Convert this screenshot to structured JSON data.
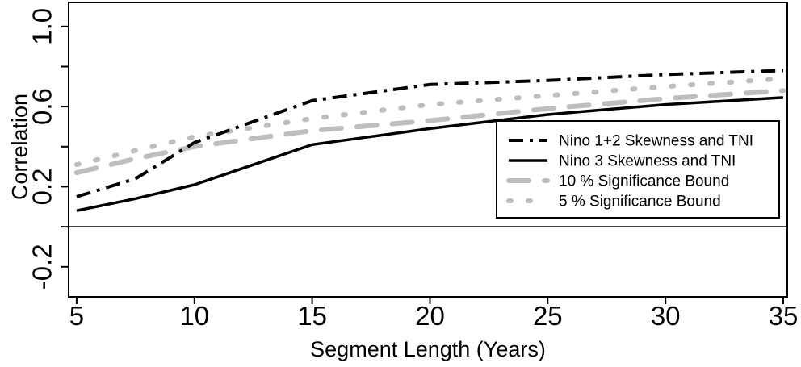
{
  "chart_data": {
    "type": "line",
    "title": "",
    "xlabel": "Segment Length (Years)",
    "ylabel": "Correlation",
    "x": [
      5,
      7.5,
      10,
      15,
      20,
      25,
      30,
      35
    ],
    "series": [
      {
        "id": "nino12",
        "name": "Nino 1+2 Skewness and TNI",
        "color": "#000000",
        "style": "dashdot",
        "width": 4,
        "values": [
          0.15,
          0.24,
          0.42,
          0.63,
          0.71,
          0.73,
          0.76,
          0.78
        ]
      },
      {
        "id": "nino3",
        "name": "Nino 3 Skewness and TNI",
        "color": "#000000",
        "style": "solid",
        "width": 3.5,
        "values": [
          0.08,
          0.14,
          0.21,
          0.41,
          0.49,
          0.56,
          0.61,
          0.645
        ]
      },
      {
        "id": "sig10",
        "name": "10 % Significance Bound",
        "color": "#bebebe",
        "style": "dashed",
        "width": 6,
        "values": [
          0.27,
          0.34,
          0.4,
          0.48,
          0.53,
          0.59,
          0.64,
          0.68
        ]
      },
      {
        "id": "sig5",
        "name": "5 % Significance Bound",
        "color": "#bebebe",
        "style": "dotted",
        "width": 6,
        "values": [
          0.31,
          0.38,
          0.45,
          0.54,
          0.61,
          0.655,
          0.7,
          0.74
        ]
      }
    ],
    "xtick_labels": [
      {
        "value": 5,
        "label": "5"
      },
      {
        "value": 10,
        "label": "10"
      },
      {
        "value": 15,
        "label": "15"
      },
      {
        "value": 20,
        "label": "20"
      },
      {
        "value": 25,
        "label": "25"
      },
      {
        "value": 30,
        "label": "30"
      },
      {
        "value": 35,
        "label": "35"
      }
    ],
    "yticks": [
      -0.2,
      0,
      0.2,
      0.4,
      0.6,
      0.8,
      1.0
    ],
    "ytick_labels": [
      {
        "value": 1.0,
        "label": "1.0"
      },
      {
        "value": 0.6,
        "label": "0.6"
      },
      {
        "value": 0.2,
        "label": "0.2"
      },
      {
        "value": -0.2,
        "label": "-0.2"
      }
    ],
    "xlim": [
      4.66,
      35.17
    ],
    "ylim": [
      -0.35,
      1.12
    ],
    "reference_line_y": 0,
    "grid": false,
    "legend_position": "inside bottom-right",
    "line_color_black": "#000000",
    "line_color_gray": "#bebebe"
  }
}
